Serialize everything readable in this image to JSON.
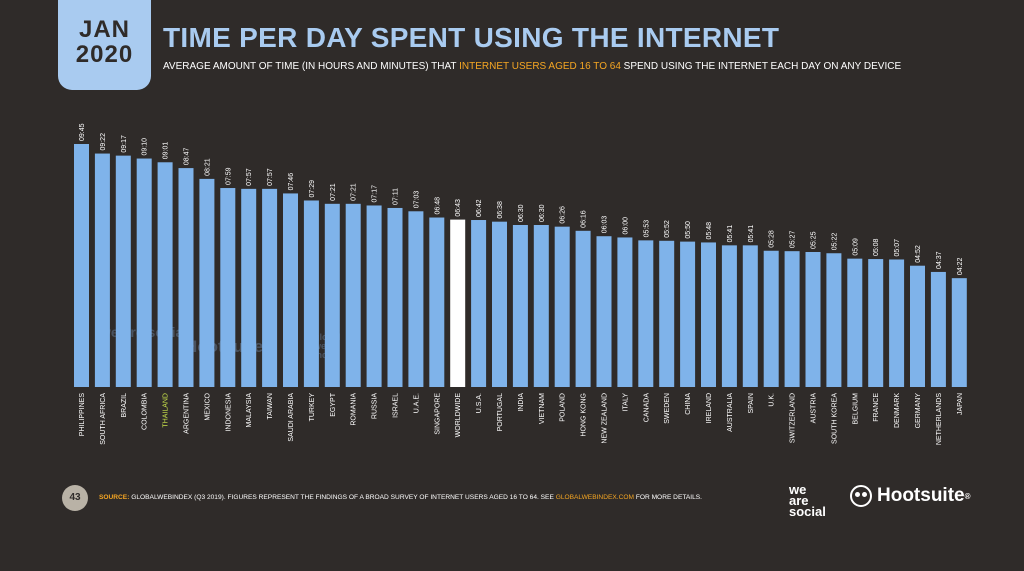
{
  "header": {
    "badge_month": "JAN",
    "badge_year": "2020",
    "title": "TIME PER DAY SPENT USING THE INTERNET",
    "subtitle_pre": "AVERAGE AMOUNT OF TIME (IN HOURS AND MINUTES) THAT ",
    "subtitle_highlight": "INTERNET USERS AGED 16 TO 64",
    "subtitle_post": " SPEND USING THE INTERNET EACH DAY ON ANY DEVICE"
  },
  "footer": {
    "page_number": "43",
    "source_label": "SOURCE:",
    "source_text": " GLOBALWEBINDEX (Q3 2019). FIGURES REPRESENT THE FINDINGS OF A BROAD SURVEY OF INTERNET USERS AGED 16 TO 64. SEE ",
    "source_link": "GLOBALWEBINDEX.COM",
    "source_tail": " FOR MORE DETAILS.",
    "logo_we": "we",
    "logo_are": "are",
    "logo_social": "social",
    "logo_hootsuite": "Hootsuite",
    "logo_reg": "®"
  },
  "watermarks": {
    "we_are_social": "we are social",
    "hootsuite": "Hootsuite",
    "gwi": "global web index"
  },
  "colors": {
    "background": "#2f2b29",
    "bar": "#7fb3ea",
    "highlight_bar": "#ffffff",
    "accent": "#f5a623",
    "title": "#a9cbf0",
    "thailand_label": "#c6e04a"
  },
  "chart_data": {
    "type": "bar",
    "unit": "hours:minutes per day",
    "categories": [
      "PHILIPPINES",
      "SOUTH AFRICA",
      "BRAZIL",
      "COLOMBIA",
      "THAILAND",
      "ARGENTINA",
      "MEXICO",
      "INDONESIA",
      "MALAYSIA",
      "TAIWAN",
      "SAUDI ARABIA",
      "TURKEY",
      "EGYPT",
      "ROMANIA",
      "RUSSIA",
      "ISRAEL",
      "U.A.E.",
      "SINGAPORE",
      "WORLDWIDE",
      "U.S.A.",
      "PORTUGAL",
      "INDIA",
      "VIETNAM",
      "POLAND",
      "HONG KONG",
      "NEW ZEALAND",
      "ITALY",
      "CANADA",
      "SWEDEN",
      "CHINA",
      "IRELAND",
      "AUSTRALIA",
      "SPAIN",
      "U.K.",
      "SWITZERLAND",
      "AUSTRIA",
      "SOUTH KOREA",
      "BELGIUM",
      "FRANCE",
      "DENMARK",
      "GERMANY",
      "NETHERLANDS",
      "JAPAN"
    ],
    "labels": [
      "09:45",
      "09:22",
      "09:17",
      "09:10",
      "09:01",
      "08:47",
      "08:21",
      "07:59",
      "07:57",
      "07:57",
      "07:46",
      "07:29",
      "07:21",
      "07:21",
      "07:17",
      "07:11",
      "07:03",
      "06:48",
      "06:43",
      "06:42",
      "06:38",
      "06:30",
      "06:30",
      "06:26",
      "06:16",
      "06:03",
      "06:00",
      "05:53",
      "05:52",
      "05:50",
      "05:48",
      "05:41",
      "05:41",
      "05:28",
      "05:27",
      "05:25",
      "05:22",
      "05:09",
      "05:08",
      "05:07",
      "04:52",
      "04:37",
      "04:22"
    ],
    "values_minutes": [
      585,
      562,
      557,
      550,
      541,
      527,
      501,
      479,
      477,
      477,
      466,
      449,
      441,
      441,
      437,
      431,
      423,
      408,
      403,
      402,
      398,
      390,
      390,
      386,
      376,
      363,
      360,
      353,
      352,
      350,
      348,
      341,
      341,
      328,
      327,
      325,
      322,
      309,
      308,
      307,
      292,
      277,
      262
    ],
    "highlight_category": "WORLDWIDE",
    "highlight_label_category": "THAILAND",
    "ylim_minutes": [
      0,
      585
    ],
    "grid": false,
    "legend": "none"
  }
}
